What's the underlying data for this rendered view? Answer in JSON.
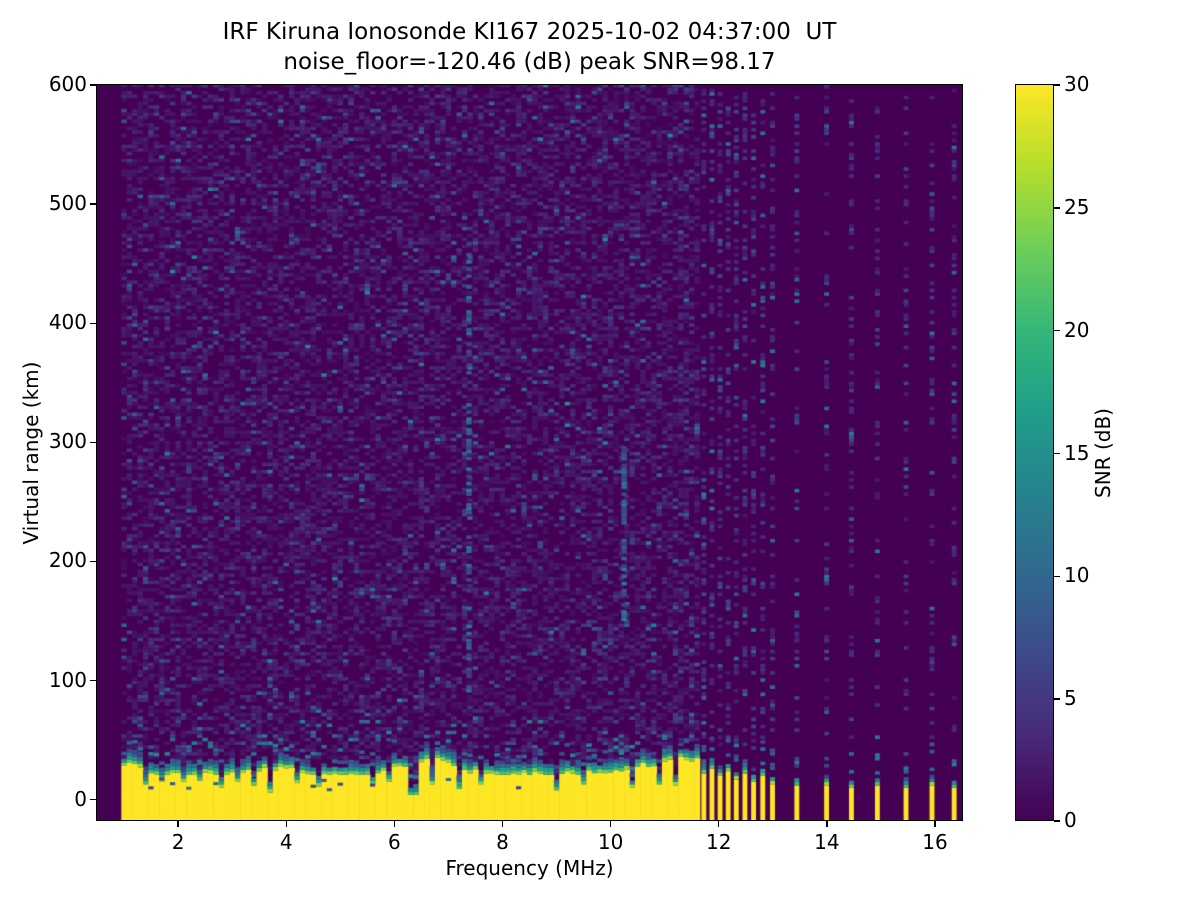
{
  "chart_data": {
    "type": "heatmap",
    "title": "IRF Kiruna Ionosonde KI167 2025-10-02 04:37:00  UT",
    "subtitle": "noise_floor=-120.46 (dB) peak SNR=98.17",
    "xlabel": "Frequency (MHz)",
    "ylabel": "Virtual range (km)",
    "xlim": [
      0.5,
      16.5
    ],
    "ylim": [
      -17,
      600
    ],
    "x_ticks": [
      2,
      4,
      6,
      8,
      10,
      12,
      14,
      16
    ],
    "y_ticks": [
      0,
      100,
      200,
      300,
      400,
      500,
      600
    ],
    "grid": false,
    "noise_floor_db": -120.46,
    "peak_snr_db": 98.17,
    "colorbar": {
      "label": "SNR (dB)",
      "ticks": [
        0,
        5,
        10,
        15,
        20,
        25,
        30
      ],
      "vmin": 0,
      "vmax": 30,
      "colormap": "viridis",
      "stops": [
        "#440154",
        "#482878",
        "#3e4989",
        "#31688e",
        "#26828e",
        "#1f9e89",
        "#35b779",
        "#6ece58",
        "#b5de2b",
        "#fde725"
      ]
    },
    "features": {
      "seed": 7,
      "background_snr_db": 0,
      "noise": {
        "f_start": 0.95,
        "f_end": 11.62,
        "df": 0.1,
        "dr": 3,
        "density": 0.5
      },
      "clutter_band": {
        "f_start": 0.95,
        "f_end": 11.62,
        "top_km_mean": 28,
        "top_km_min": 21,
        "top_km_max": 36,
        "notches": [
          [
            1.35,
            0.05,
            13
          ],
          [
            1.62,
            0.04,
            15
          ],
          [
            2.02,
            0.04,
            15
          ],
          [
            2.38,
            0.04,
            16
          ],
          [
            2.72,
            0.05,
            10
          ],
          [
            3.06,
            0.04,
            15
          ],
          [
            3.35,
            0.04,
            12
          ],
          [
            3.68,
            0.06,
            6
          ],
          [
            4.12,
            0.04,
            14
          ],
          [
            4.55,
            0.05,
            11
          ],
          [
            5.0,
            0.04,
            14
          ],
          [
            5.52,
            0.04,
            13
          ],
          [
            5.86,
            0.04,
            15
          ],
          [
            6.32,
            0.08,
            4
          ],
          [
            6.62,
            0.04,
            13
          ],
          [
            7.12,
            0.05,
            9
          ],
          [
            7.56,
            0.04,
            13
          ],
          [
            8.1,
            0.04,
            12
          ],
          [
            8.6,
            0.04,
            14
          ],
          [
            8.95,
            0.06,
            8
          ],
          [
            9.42,
            0.04,
            13
          ],
          [
            9.9,
            0.04,
            14
          ],
          [
            10.38,
            0.05,
            10
          ],
          [
            10.85,
            0.04,
            13
          ],
          [
            11.15,
            0.04,
            12
          ]
        ]
      },
      "streaks": [
        [
          7.33,
          90,
          470
        ],
        [
          10.2,
          150,
          300
        ]
      ],
      "sparse_tones": [
        [
          11.68,
          22
        ],
        [
          11.83,
          26
        ],
        [
          11.98,
          20
        ],
        [
          12.13,
          24
        ],
        [
          12.28,
          17
        ],
        [
          12.44,
          22
        ],
        [
          12.6,
          15
        ],
        [
          12.77,
          20
        ],
        [
          12.95,
          13
        ],
        [
          13.4,
          12
        ],
        [
          13.95,
          12
        ],
        [
          14.41,
          10
        ],
        [
          14.89,
          12
        ],
        [
          15.42,
          10
        ],
        [
          15.9,
          12
        ],
        [
          16.31,
          10
        ]
      ]
    }
  }
}
